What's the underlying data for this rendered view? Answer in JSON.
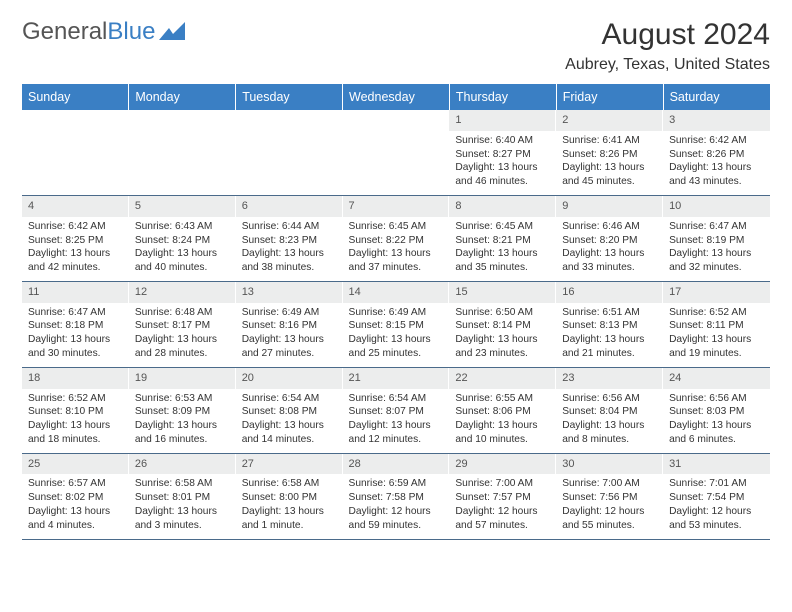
{
  "logo": {
    "text1": "General",
    "text2": "Blue"
  },
  "title": "August 2024",
  "location": "Aubrey, Texas, United States",
  "colors": {
    "header_bg": "#3a7fc4",
    "header_fg": "#ffffff",
    "daynum_bg": "#eceded",
    "row_border": "#4a6a8a",
    "logo_gray": "#555555",
    "logo_blue": "#3a7fc4"
  },
  "weekdays": [
    "Sunday",
    "Monday",
    "Tuesday",
    "Wednesday",
    "Thursday",
    "Friday",
    "Saturday"
  ],
  "weeks": [
    [
      {
        "empty": true
      },
      {
        "empty": true
      },
      {
        "empty": true
      },
      {
        "empty": true
      },
      {
        "n": "1",
        "sr": "6:40 AM",
        "ss": "8:27 PM",
        "dl": "13 hours and 46 minutes."
      },
      {
        "n": "2",
        "sr": "6:41 AM",
        "ss": "8:26 PM",
        "dl": "13 hours and 45 minutes."
      },
      {
        "n": "3",
        "sr": "6:42 AM",
        "ss": "8:26 PM",
        "dl": "13 hours and 43 minutes."
      }
    ],
    [
      {
        "n": "4",
        "sr": "6:42 AM",
        "ss": "8:25 PM",
        "dl": "13 hours and 42 minutes."
      },
      {
        "n": "5",
        "sr": "6:43 AM",
        "ss": "8:24 PM",
        "dl": "13 hours and 40 minutes."
      },
      {
        "n": "6",
        "sr": "6:44 AM",
        "ss": "8:23 PM",
        "dl": "13 hours and 38 minutes."
      },
      {
        "n": "7",
        "sr": "6:45 AM",
        "ss": "8:22 PM",
        "dl": "13 hours and 37 minutes."
      },
      {
        "n": "8",
        "sr": "6:45 AM",
        "ss": "8:21 PM",
        "dl": "13 hours and 35 minutes."
      },
      {
        "n": "9",
        "sr": "6:46 AM",
        "ss": "8:20 PM",
        "dl": "13 hours and 33 minutes."
      },
      {
        "n": "10",
        "sr": "6:47 AM",
        "ss": "8:19 PM",
        "dl": "13 hours and 32 minutes."
      }
    ],
    [
      {
        "n": "11",
        "sr": "6:47 AM",
        "ss": "8:18 PM",
        "dl": "13 hours and 30 minutes."
      },
      {
        "n": "12",
        "sr": "6:48 AM",
        "ss": "8:17 PM",
        "dl": "13 hours and 28 minutes."
      },
      {
        "n": "13",
        "sr": "6:49 AM",
        "ss": "8:16 PM",
        "dl": "13 hours and 27 minutes."
      },
      {
        "n": "14",
        "sr": "6:49 AM",
        "ss": "8:15 PM",
        "dl": "13 hours and 25 minutes."
      },
      {
        "n": "15",
        "sr": "6:50 AM",
        "ss": "8:14 PM",
        "dl": "13 hours and 23 minutes."
      },
      {
        "n": "16",
        "sr": "6:51 AM",
        "ss": "8:13 PM",
        "dl": "13 hours and 21 minutes."
      },
      {
        "n": "17",
        "sr": "6:52 AM",
        "ss": "8:11 PM",
        "dl": "13 hours and 19 minutes."
      }
    ],
    [
      {
        "n": "18",
        "sr": "6:52 AM",
        "ss": "8:10 PM",
        "dl": "13 hours and 18 minutes."
      },
      {
        "n": "19",
        "sr": "6:53 AM",
        "ss": "8:09 PM",
        "dl": "13 hours and 16 minutes."
      },
      {
        "n": "20",
        "sr": "6:54 AM",
        "ss": "8:08 PM",
        "dl": "13 hours and 14 minutes."
      },
      {
        "n": "21",
        "sr": "6:54 AM",
        "ss": "8:07 PM",
        "dl": "13 hours and 12 minutes."
      },
      {
        "n": "22",
        "sr": "6:55 AM",
        "ss": "8:06 PM",
        "dl": "13 hours and 10 minutes."
      },
      {
        "n": "23",
        "sr": "6:56 AM",
        "ss": "8:04 PM",
        "dl": "13 hours and 8 minutes."
      },
      {
        "n": "24",
        "sr": "6:56 AM",
        "ss": "8:03 PM",
        "dl": "13 hours and 6 minutes."
      }
    ],
    [
      {
        "n": "25",
        "sr": "6:57 AM",
        "ss": "8:02 PM",
        "dl": "13 hours and 4 minutes."
      },
      {
        "n": "26",
        "sr": "6:58 AM",
        "ss": "8:01 PM",
        "dl": "13 hours and 3 minutes."
      },
      {
        "n": "27",
        "sr": "6:58 AM",
        "ss": "8:00 PM",
        "dl": "13 hours and 1 minute."
      },
      {
        "n": "28",
        "sr": "6:59 AM",
        "ss": "7:58 PM",
        "dl": "12 hours and 59 minutes."
      },
      {
        "n": "29",
        "sr": "7:00 AM",
        "ss": "7:57 PM",
        "dl": "12 hours and 57 minutes."
      },
      {
        "n": "30",
        "sr": "7:00 AM",
        "ss": "7:56 PM",
        "dl": "12 hours and 55 minutes."
      },
      {
        "n": "31",
        "sr": "7:01 AM",
        "ss": "7:54 PM",
        "dl": "12 hours and 53 minutes."
      }
    ]
  ],
  "labels": {
    "sunrise": "Sunrise: ",
    "sunset": "Sunset: ",
    "daylight": "Daylight: "
  }
}
